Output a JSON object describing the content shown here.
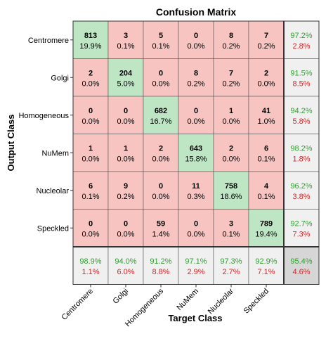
{
  "chart_data": {
    "type": "heatmap",
    "title": "Confusion Matrix",
    "xlabel": "Target Class",
    "ylabel": "Output Class",
    "classes": [
      "Centromere",
      "Golgi",
      "Homogeneous",
      "NuMem",
      "Nucleolar",
      "Speckled"
    ],
    "counts": [
      [
        813,
        3,
        5,
        0,
        8,
        7
      ],
      [
        2,
        204,
        0,
        8,
        7,
        2
      ],
      [
        0,
        0,
        682,
        0,
        1,
        41
      ],
      [
        1,
        1,
        2,
        643,
        2,
        6
      ],
      [
        6,
        9,
        0,
        11,
        758,
        4
      ],
      [
        0,
        0,
        59,
        0,
        3,
        789
      ]
    ],
    "percents": [
      [
        "19.9%",
        "0.1%",
        "0.1%",
        "0.0%",
        "0.2%",
        "0.2%"
      ],
      [
        "0.0%",
        "5.0%",
        "0.0%",
        "0.2%",
        "0.2%",
        "0.0%"
      ],
      [
        "0.0%",
        "0.0%",
        "16.7%",
        "0.0%",
        "0.0%",
        "1.0%"
      ],
      [
        "0.0%",
        "0.0%",
        "0.0%",
        "15.8%",
        "0.0%",
        "0.1%"
      ],
      [
        "0.1%",
        "0.2%",
        "0.0%",
        "0.3%",
        "18.6%",
        "0.1%"
      ],
      [
        "0.0%",
        "0.0%",
        "1.4%",
        "0.0%",
        "0.1%",
        "19.4%"
      ]
    ],
    "row_summary": [
      [
        "97.2%",
        "2.8%"
      ],
      [
        "91.5%",
        "8.5%"
      ],
      [
        "94.2%",
        "5.8%"
      ],
      [
        "98.2%",
        "1.8%"
      ],
      [
        "96.2%",
        "3.8%"
      ],
      [
        "92.7%",
        "7.3%"
      ]
    ],
    "col_summary": [
      [
        "98.9%",
        "1.1%"
      ],
      [
        "94.0%",
        "6.0%"
      ],
      [
        "91.2%",
        "8.8%"
      ],
      [
        "97.1%",
        "2.9%"
      ],
      [
        "97.3%",
        "2.7%"
      ],
      [
        "92.9%",
        "7.1%"
      ]
    ],
    "overall": [
      "95.4%",
      "4.6%"
    ],
    "colors": {
      "correct": "#bfe6c4",
      "incorrect": "#f7c4c1",
      "summary": "#f0f0f0",
      "overall": "#d6d6d6",
      "accuracy_text": "#2ea12e",
      "error_text": "#d62728"
    }
  }
}
